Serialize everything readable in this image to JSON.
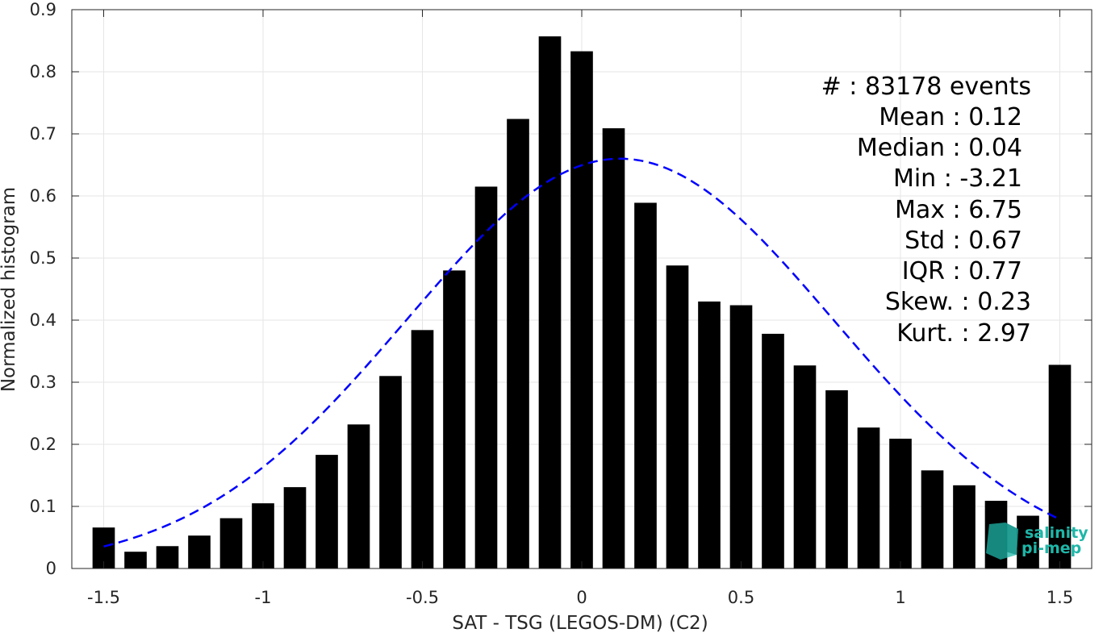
{
  "chart_data": {
    "type": "bar",
    "xlabel": "SAT - TSG (LEGOS-DM) (C2)",
    "ylabel": "Normalized histogram",
    "xlim": [
      -1.6,
      1.6
    ],
    "ylim": [
      0,
      0.9
    ],
    "xticks": [
      -1.5,
      -1,
      -0.5,
      0,
      0.5,
      1,
      1.5
    ],
    "xtick_labels": [
      "-1.5",
      "-1",
      "-0.5",
      "0",
      "0.5",
      "1",
      "1.5"
    ],
    "yticks": [
      0,
      0.1,
      0.2,
      0.3,
      0.4,
      0.5,
      0.6,
      0.7,
      0.8,
      0.9
    ],
    "ytick_labels": [
      "0",
      "0.1",
      "0.2",
      "0.3",
      "0.4",
      "0.5",
      "0.6",
      "0.7",
      "0.8",
      "0.9"
    ],
    "grid": true,
    "bar_color": "#000000",
    "bar_width": 0.07,
    "x": [
      -1.5,
      -1.4,
      -1.3,
      -1.2,
      -1.1,
      -1.0,
      -0.9,
      -0.8,
      -0.7,
      -0.6,
      -0.5,
      -0.4,
      -0.3,
      -0.2,
      -0.1,
      0.0,
      0.1,
      0.2,
      0.3,
      0.4,
      0.5,
      0.6,
      0.7,
      0.8,
      0.9,
      1.0,
      1.1,
      1.2,
      1.3,
      1.4,
      1.5
    ],
    "values": [
      0.066,
      0.027,
      0.036,
      0.053,
      0.081,
      0.105,
      0.131,
      0.183,
      0.232,
      0.31,
      0.384,
      0.48,
      0.615,
      0.724,
      0.857,
      0.833,
      0.709,
      0.589,
      0.488,
      0.43,
      0.424,
      0.378,
      0.327,
      0.287,
      0.227,
      0.209,
      0.158,
      0.134,
      0.109,
      0.085,
      0.328
    ],
    "fit": {
      "type": "normal",
      "mean": 0.12,
      "std": 0.67,
      "peak": 0.66,
      "x_start": -1.5,
      "x_end": 1.5,
      "color": "#0000ff",
      "style": "dashed"
    }
  },
  "stats": {
    "lines": [
      "#  : 83178 events",
      "Mean : 0.12",
      "Median : 0.04",
      "Min : -3.21",
      "Max : 6.75",
      "Std : 0.67",
      "IQR : 0.77",
      "Skew. : 0.23",
      "Kurt. : 2.97"
    ]
  },
  "logo": {
    "line1": "salinity",
    "line2": "pi-mep",
    "color": "#1fb6a8"
  }
}
